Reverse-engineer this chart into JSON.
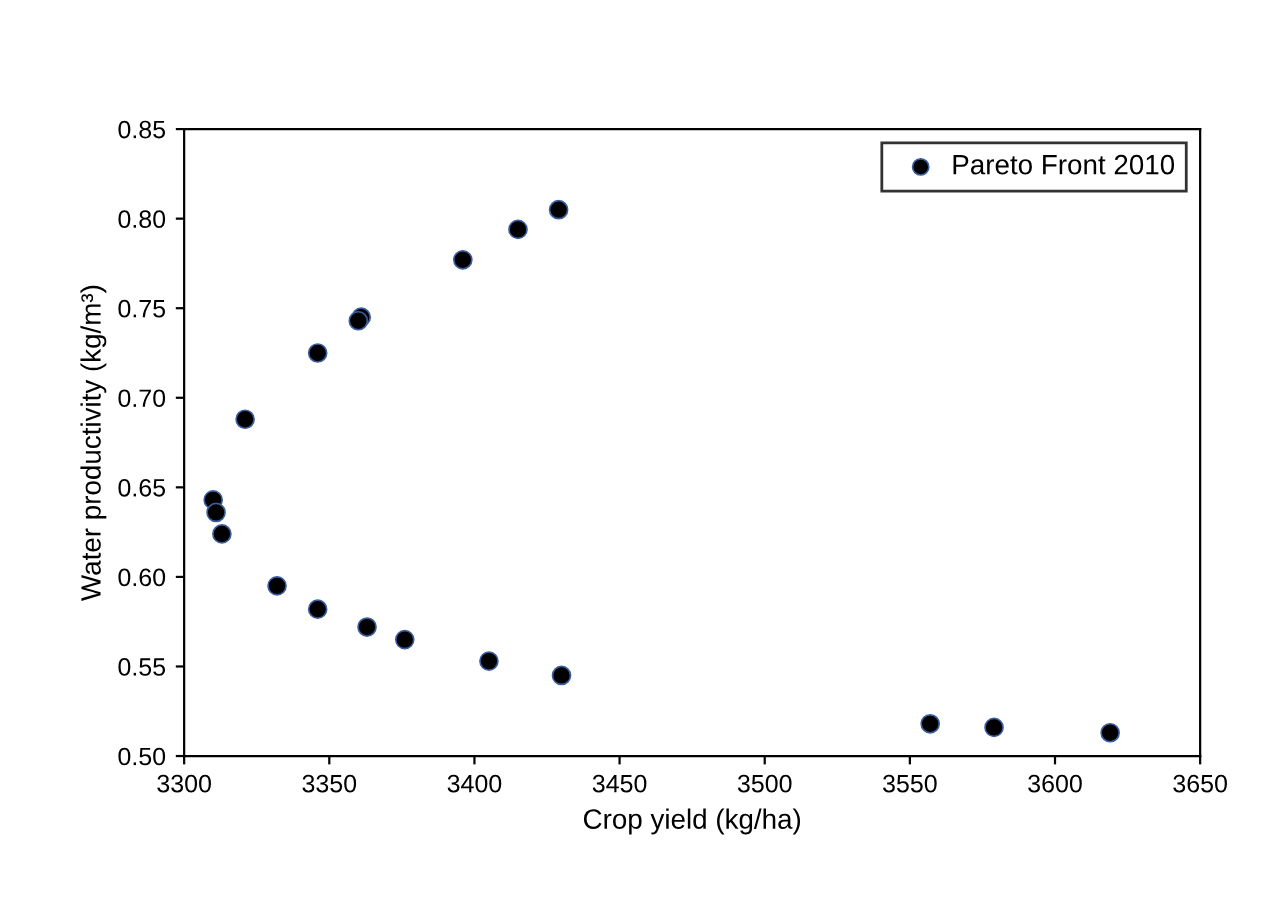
{
  "chart_data": {
    "type": "scatter",
    "xlabel": "Crop yield (kg/ha)",
    "ylabel": "Water productivity (kg/m³)",
    "x": [
      3429,
      3415,
      3396,
      3361,
      3360,
      3346,
      3321,
      3310,
      3311,
      3313,
      3332,
      3346,
      3363,
      3376,
      3405,
      3430,
      3557,
      3579,
      3619
    ],
    "series": [
      {
        "name": "Pareto Front 2010",
        "color": "#000000",
        "values": [
          0.805,
          0.794,
          0.777,
          0.745,
          0.743,
          0.725,
          0.688,
          0.643,
          0.636,
          0.624,
          0.595,
          0.582,
          0.572,
          0.565,
          0.553,
          0.545,
          0.518,
          0.516,
          0.513
        ]
      }
    ],
    "xlim": [
      3300,
      3650
    ],
    "xticks": [
      3300,
      3350,
      3400,
      3450,
      3500,
      3550,
      3600,
      3650
    ],
    "ylim": [
      0.5,
      0.85
    ],
    "yticks": [
      {
        "value": 0.5,
        "label": "0.50"
      },
      {
        "value": 0.55,
        "label": "0.55"
      },
      {
        "value": 0.6,
        "label": "0.60"
      },
      {
        "value": 0.65,
        "label": "0.65"
      },
      {
        "value": 0.7,
        "label": "0.70"
      },
      {
        "value": 0.75,
        "label": "0.75"
      },
      {
        "value": 0.8,
        "label": "0.80"
      },
      {
        "value": 0.85,
        "label": "0.85"
      }
    ],
    "marker": "circle",
    "legend": "top right",
    "grid": false
  }
}
